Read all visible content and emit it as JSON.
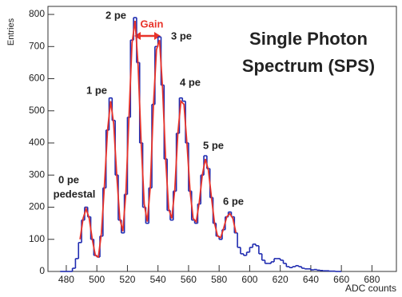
{
  "chart_data": {
    "type": "histogram",
    "title": [
      "Single Photon",
      "Spectrum (SPS)"
    ],
    "xlabel": "ADC counts",
    "ylabel": "Entries",
    "xlim": [
      468,
      696
    ],
    "ylim": [
      0,
      825
    ],
    "xticks": [
      480,
      500,
      520,
      540,
      560,
      580,
      600,
      620,
      640,
      660,
      680
    ],
    "yticks": [
      0,
      100,
      200,
      300,
      400,
      500,
      600,
      700,
      800
    ],
    "bins": [
      476,
      478,
      480,
      482,
      484,
      486,
      488,
      490,
      492,
      494,
      496,
      498,
      500,
      502,
      504,
      506,
      508,
      510,
      512,
      514,
      516,
      518,
      520,
      522,
      524,
      526,
      528,
      530,
      532,
      534,
      536,
      538,
      540,
      542,
      544,
      546,
      548,
      550,
      552,
      554,
      556,
      558,
      560,
      562,
      564,
      566,
      568,
      570,
      572,
      574,
      576,
      578,
      580,
      582,
      584,
      586,
      588,
      590,
      592,
      594,
      596,
      598,
      600,
      602,
      604,
      606,
      608,
      610,
      612,
      614,
      616,
      618,
      620,
      622,
      624,
      626,
      628,
      630,
      632,
      634,
      636,
      638,
      640,
      642,
      644,
      646,
      648,
      650,
      652,
      654,
      656,
      658,
      660
    ],
    "values": [
      0,
      0,
      0,
      0,
      10,
      40,
      90,
      160,
      200,
      170,
      100,
      50,
      45,
      110,
      260,
      440,
      540,
      470,
      300,
      160,
      120,
      240,
      480,
      720,
      790,
      650,
      400,
      200,
      150,
      260,
      520,
      700,
      730,
      580,
      350,
      190,
      160,
      250,
      430,
      540,
      530,
      400,
      250,
      160,
      150,
      210,
      300,
      360,
      320,
      230,
      150,
      110,
      100,
      130,
      170,
      185,
      170,
      120,
      75,
      55,
      50,
      60,
      75,
      85,
      80,
      55,
      35,
      25,
      25,
      30,
      40,
      40,
      35,
      25,
      15,
      12,
      15,
      18,
      15,
      10,
      8,
      8,
      5,
      6,
      4,
      3,
      2,
      2,
      1,
      1,
      0,
      0
    ],
    "color": "#1f2bb0",
    "fit": {
      "color": "#e8332a",
      "x": [
        489,
        491,
        493,
        495,
        497,
        499,
        501,
        503,
        505,
        507,
        509,
        511,
        513,
        515,
        517,
        519,
        521,
        523,
        525,
        527,
        529,
        531,
        533,
        535,
        537,
        539,
        541,
        543,
        545,
        547,
        549,
        551,
        553,
        555,
        557,
        559,
        561,
        563,
        565,
        567,
        569,
        571,
        573,
        575,
        577,
        579,
        581,
        583,
        585,
        587,
        589,
        591
      ],
      "values": [
        100,
        165,
        195,
        165,
        100,
        50,
        45,
        120,
        270,
        440,
        530,
        460,
        300,
        165,
        125,
        245,
        480,
        710,
        780,
        640,
        400,
        210,
        155,
        265,
        515,
        690,
        720,
        570,
        350,
        195,
        165,
        255,
        430,
        530,
        520,
        395,
        250,
        165,
        155,
        215,
        300,
        350,
        315,
        230,
        150,
        110,
        105,
        135,
        170,
        180,
        165,
        120
      ]
    },
    "annotations": [
      "2 pe",
      "Gain",
      "3 pe",
      "1 pe",
      "4 pe",
      "5 pe",
      "6 pe",
      "0 pe",
      "pedestal"
    ]
  }
}
